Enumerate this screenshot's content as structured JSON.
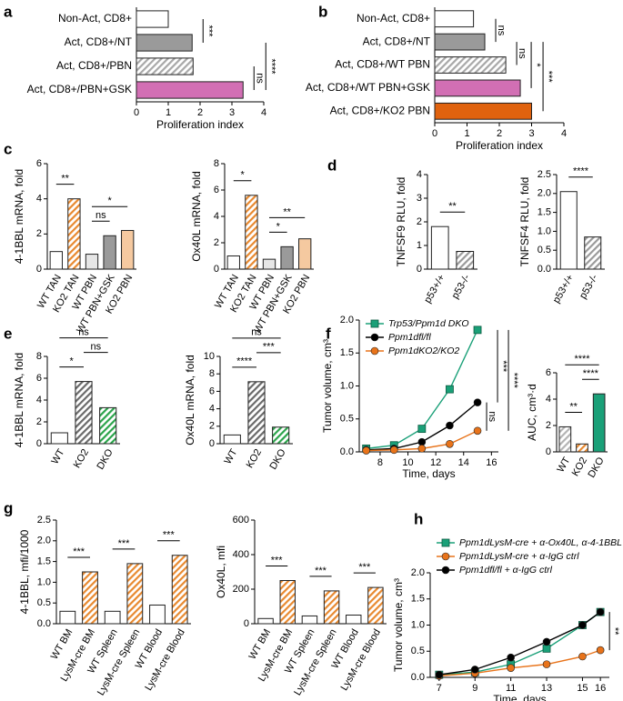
{
  "chart_data": [
    {
      "type": "hbar",
      "panel": "a",
      "categories": [
        "Non-Act, CD8+",
        "Act, CD8+/NT",
        "Act, CD8+/PBN",
        "Act, CD8+/PBN+GSK"
      ],
      "values": [
        1.0,
        1.75,
        1.78,
        3.35
      ],
      "colors": [
        "#ffffff",
        "#9a9a9a",
        "#a8a8a8",
        "#d26fb4"
      ],
      "hatched": [
        false,
        false,
        true,
        false
      ],
      "xlim": [
        0,
        4
      ],
      "xticks": [
        0,
        1,
        2,
        3,
        4
      ],
      "xlabel": "Proliferation index",
      "annotations": [
        {
          "text": "***",
          "between": [
            0,
            1
          ]
        },
        {
          "text": "ns",
          "between": [
            2,
            3
          ]
        },
        {
          "text": "****",
          "between": [
            1,
            3
          ]
        }
      ]
    },
    {
      "type": "hbar",
      "panel": "b",
      "categories": [
        "Non-Act, CD8+",
        "Act, CD8+/NT",
        "Act, CD8+/WT PBN",
        "Act, CD8+/WT PBN+GSK",
        "Act, CD8+/KO2 PBN"
      ],
      "values": [
        1.2,
        1.55,
        2.2,
        2.65,
        3.0
      ],
      "colors": [
        "#ffffff",
        "#9a9a9a",
        "#a8a8a8",
        "#d26fb4",
        "#e0620e"
      ],
      "hatched": [
        false,
        false,
        true,
        false,
        false
      ],
      "xlim": [
        0,
        4
      ],
      "xticks": [
        0,
        1,
        2,
        3,
        4
      ],
      "xlabel": "Proliferation index",
      "annotations": [
        {
          "text": "ns",
          "between": [
            0,
            1
          ]
        },
        {
          "text": "ns",
          "between": [
            1,
            2
          ]
        },
        {
          "text": "*",
          "between": [
            1,
            3
          ]
        },
        {
          "text": "***",
          "between": [
            1,
            4
          ]
        }
      ]
    },
    {
      "type": "bar",
      "panel": "c",
      "categories": [
        "WT TAN",
        "KO2 TAN",
        "WT PBN",
        "WT PBN+GSK",
        "KO2 PBN"
      ],
      "values": [
        1.0,
        4.0,
        0.85,
        1.9,
        2.2
      ],
      "colors": [
        "#ffffff",
        "#e8892f",
        "#e6e6e6",
        "#9a9a9a",
        "#f5c9a0"
      ],
      "hatched": [
        false,
        true,
        false,
        false,
        false
      ],
      "ylim": [
        0,
        6
      ],
      "yticks": [
        0,
        2,
        4,
        6
      ],
      "ylabel": "4-1BBL mRNA, fold",
      "annotations": [
        {
          "text": "**",
          "between": [
            0,
            1
          ]
        },
        {
          "text": "ns",
          "between": [
            2,
            3
          ]
        },
        {
          "text": "*",
          "between": [
            2,
            4
          ]
        }
      ]
    },
    {
      "type": "bar",
      "categories": [
        "WT TAN",
        "KO2 TAN",
        "WT PBN",
        "WT PBN+GSK",
        "KO2 PBN"
      ],
      "values": [
        1.0,
        5.6,
        0.75,
        1.7,
        2.3
      ],
      "colors": [
        "#ffffff",
        "#e8892f",
        "#e6e6e6",
        "#9a9a9a",
        "#f5c9a0"
      ],
      "hatched": [
        false,
        true,
        false,
        false,
        false
      ],
      "ylim": [
        0,
        8
      ],
      "yticks": [
        0,
        2,
        4,
        6,
        8
      ],
      "ylabel": "Ox40L mRNA, fold",
      "annotations": [
        {
          "text": "*",
          "between": [
            0,
            1
          ]
        },
        {
          "text": "*",
          "between": [
            2,
            3
          ]
        },
        {
          "text": "**",
          "between": [
            2,
            4
          ]
        }
      ]
    },
    {
      "type": "bar",
      "panel": "d",
      "categories": [
        "p53+/+",
        "p53-/-"
      ],
      "values": [
        1.8,
        0.75
      ],
      "colors": [
        "#ffffff",
        "#9a9a9a"
      ],
      "hatched": [
        false,
        true
      ],
      "ylim": [
        0,
        4
      ],
      "yticks": [
        0,
        1,
        2,
        3,
        4
      ],
      "ylabel": "TNFSF9 RLU, fold",
      "annotations": [
        {
          "text": "**",
          "between": [
            0,
            1
          ]
        }
      ]
    },
    {
      "type": "bar",
      "categories": [
        "p53+/+",
        "p53-/-"
      ],
      "values": [
        2.05,
        0.85
      ],
      "colors": [
        "#ffffff",
        "#9a9a9a"
      ],
      "hatched": [
        false,
        true
      ],
      "ylim": [
        0,
        2.5
      ],
      "yticks": [
        {
          "value": 0,
          "label": "0.0"
        },
        {
          "value": 0.5,
          "label": "0.5"
        },
        {
          "value": 1,
          "label": "1.0"
        },
        {
          "value": 1.5,
          "label": "1.5"
        },
        {
          "value": 2,
          "label": "2.0"
        },
        {
          "value": 2.5,
          "label": "2.5"
        }
      ],
      "ylabel": "TNFSF4 RLU, fold",
      "annotations": [
        {
          "text": "****",
          "between": [
            0,
            1
          ]
        }
      ]
    },
    {
      "type": "bar",
      "panel": "e",
      "categories": [
        "WT",
        "KO2",
        "DKO"
      ],
      "values": [
        1.0,
        5.7,
        3.3
      ],
      "colors": [
        "#ffffff",
        "#6a6a6a",
        "#2aa44a"
      ],
      "hatched": [
        false,
        true,
        true
      ],
      "ylim": [
        0,
        8
      ],
      "yticks": [
        0,
        2,
        4,
        6,
        8
      ],
      "ylabel": "4-1BBL mRNA, fold",
      "annotations": [
        {
          "text": "*",
          "between": [
            0,
            1
          ]
        },
        {
          "text": "ns",
          "between": [
            1,
            2
          ]
        },
        {
          "text": "ns",
          "between": [
            0,
            2
          ]
        }
      ]
    },
    {
      "type": "bar",
      "categories": [
        "WT",
        "KO2",
        "DKO"
      ],
      "values": [
        1.0,
        7.1,
        1.9
      ],
      "colors": [
        "#ffffff",
        "#6a6a6a",
        "#2aa44a"
      ],
      "hatched": [
        false,
        true,
        true
      ],
      "ylim": [
        0,
        10
      ],
      "yticks": [
        0,
        2,
        4,
        6,
        8,
        10
      ],
      "ylabel": "Ox40L mRNA, fold",
      "annotations": [
        {
          "text": "****",
          "between": [
            0,
            1
          ]
        },
        {
          "text": "***",
          "between": [
            1,
            2
          ]
        },
        {
          "text": "ns",
          "between": [
            0,
            2
          ]
        }
      ]
    },
    {
      "type": "line",
      "panel": "f",
      "x": [
        7,
        9,
        11,
        13,
        15
      ],
      "series": [
        {
          "name": "Trp53/Ppm1d DKO",
          "color": "#1aa078",
          "marker": "square",
          "values": [
            0.05,
            0.1,
            0.35,
            0.95,
            1.85
          ]
        },
        {
          "name": "Ppm1dfl/fl",
          "color": "#000000",
          "marker": "circle",
          "values": [
            0.03,
            0.05,
            0.15,
            0.4,
            0.75
          ]
        },
        {
          "name": "Ppm1dKO2/KO2",
          "color": "#e8731a",
          "marker": "circle",
          "values": [
            0.02,
            0.03,
            0.05,
            0.12,
            0.32
          ]
        }
      ],
      "xlim": [
        6.5,
        16.5
      ],
      "xticks": [
        8,
        10,
        12,
        14,
        16
      ],
      "ylim": [
        0,
        2
      ],
      "yticks": [
        {
          "value": 0,
          "label": "0.0"
        },
        {
          "value": 0.5,
          "label": "0.5"
        },
        {
          "value": 1,
          "label": "1.0"
        },
        {
          "value": 1.5,
          "label": "1.5"
        },
        {
          "value": 2,
          "label": "2.0"
        }
      ],
      "xlabel": "Time, days",
      "ylabel": "Tumor volume, cm³",
      "annotations": [
        {
          "text": "ns",
          "between": [
            1,
            2
          ]
        },
        {
          "text": "***",
          "between": [
            0,
            1
          ]
        },
        {
          "text": "****",
          "between": [
            0,
            2
          ]
        }
      ]
    },
    {
      "type": "bar",
      "categories": [
        "WT",
        "KO2",
        "DKO"
      ],
      "values": [
        1.9,
        0.6,
        4.4
      ],
      "colors": [
        "#b4b4b4",
        "#e8892f",
        "#1aa078"
      ],
      "hatched": [
        true,
        true,
        false
      ],
      "ylim": [
        0,
        6
      ],
      "yticks": [
        0,
        2,
        4,
        6
      ],
      "ylabel": "AUC, cm³·d",
      "annotations": [
        {
          "text": "**",
          "between": [
            0,
            1
          ]
        },
        {
          "text": "****",
          "between": [
            1,
            2
          ]
        },
        {
          "text": "****",
          "between": [
            0,
            2
          ]
        }
      ]
    },
    {
      "type": "bar",
      "panel": "g",
      "categories": [
        "WT BM",
        "LysM-cre BM",
        "WT Spleen",
        "LysM-cre Spleen",
        "WT Blood",
        "LysM-cre Blood"
      ],
      "values": [
        0.3,
        1.25,
        0.3,
        1.45,
        0.45,
        1.65
      ],
      "colors": [
        "#ffffff",
        "#e8892f",
        "#ffffff",
        "#e8892f",
        "#ffffff",
        "#e8892f"
      ],
      "hatched": [
        false,
        true,
        false,
        true,
        false,
        true
      ],
      "ylim": [
        0,
        2.5
      ],
      "yticks": [
        {
          "value": 0,
          "label": "0.0"
        },
        {
          "value": 0.5,
          "label": "0.5"
        },
        {
          "value": 1,
          "label": "1.0"
        },
        {
          "value": 1.5,
          "label": "1.5"
        },
        {
          "value": 2,
          "label": "2.0"
        },
        {
          "value": 2.5,
          "label": "2.5"
        }
      ],
      "ylabel": "4-1BBL, mfi/1000",
      "annotations": [
        {
          "text": "***",
          "between": [
            0,
            1
          ]
        },
        {
          "text": "***",
          "between": [
            2,
            3
          ]
        },
        {
          "text": "***",
          "between": [
            4,
            5
          ]
        }
      ]
    },
    {
      "type": "bar",
      "categories": [
        "WT BM",
        "LysM-cre BM",
        "WT Spleen",
        "LysM-cre Spleen",
        "WT Blood",
        "LysM-cre Blood"
      ],
      "values": [
        30,
        250,
        45,
        190,
        50,
        210
      ],
      "colors": [
        "#ffffff",
        "#e8892f",
        "#ffffff",
        "#e8892f",
        "#ffffff",
        "#e8892f"
      ],
      "hatched": [
        false,
        true,
        false,
        true,
        false,
        true
      ],
      "ylim": [
        0,
        600
      ],
      "yticks": [
        0,
        200,
        400,
        600
      ],
      "ylabel": "Ox40L, mfi",
      "annotations": [
        {
          "text": "***",
          "between": [
            0,
            1
          ]
        },
        {
          "text": "***",
          "between": [
            2,
            3
          ]
        },
        {
          "text": "***",
          "between": [
            4,
            5
          ]
        }
      ]
    },
    {
      "type": "line",
      "panel": "h",
      "x": [
        7,
        9,
        11,
        13,
        15,
        16
      ],
      "series": [
        {
          "name": "Ppm1dLysM-cre + α-Ox40L, α-4-1BBL",
          "color": "#1aa078",
          "marker": "square",
          "values": [
            0.05,
            0.1,
            0.25,
            0.55,
            1.0,
            1.25
          ]
        },
        {
          "name": "Ppm1dLysM-cre + α-IgG ctrl",
          "color": "#e8731a",
          "marker": "circle",
          "values": [
            0.03,
            0.08,
            0.18,
            0.25,
            0.4,
            0.52
          ]
        },
        {
          "name": "Ppm1dfl/fl + α-IgG ctrl",
          "color": "#000000",
          "marker": "circle",
          "values": [
            0.05,
            0.15,
            0.38,
            0.68,
            1.0,
            1.25
          ]
        }
      ],
      "xlim": [
        6.5,
        16.5
      ],
      "xticks": [
        7,
        9,
        11,
        13,
        15,
        16
      ],
      "ylim": [
        0,
        2
      ],
      "yticks": [
        {
          "value": 0,
          "label": "0.0"
        },
        {
          "value": 0.5,
          "label": "0.5"
        },
        {
          "value": 1,
          "label": "1.0"
        },
        {
          "value": 1.5,
          "label": "1.5"
        },
        {
          "value": 2,
          "label": "2.0"
        }
      ],
      "xlabel": "Time, days",
      "ylabel": "Tumor volume, cm³",
      "annotations": [
        {
          "text": "**",
          "between": [
            0,
            1
          ]
        }
      ]
    }
  ]
}
